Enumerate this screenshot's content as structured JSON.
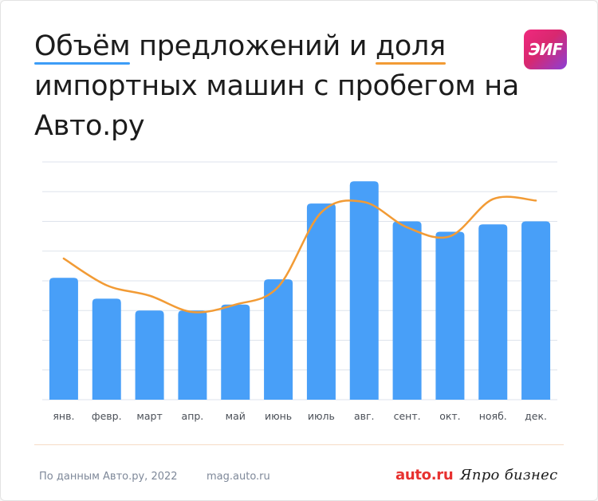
{
  "title": {
    "part1": "Объём",
    "part2": " предложений и ",
    "part3": "доля",
    "part4": " импортных машин с пробегом на Авто.ру"
  },
  "logo_text": "ЭИF",
  "colors": {
    "bar": "#489ff8",
    "line": "#f29b35",
    "grid": "#dde3ec",
    "text": "#1c1c1c",
    "muted": "#7e8899",
    "brand_red": "#e7312f"
  },
  "chart_data": {
    "type": "bar",
    "title": "",
    "xlabel": "",
    "ylabel": "",
    "ylim": [
      0,
      8
    ],
    "categories": [
      "янв.",
      "февр.",
      "март",
      "апр.",
      "май",
      "июнь",
      "июль",
      "авг.",
      "сент.",
      "окт.",
      "нояб.",
      "дек."
    ],
    "series": [
      {
        "kind": "bar",
        "values": [
          4.1,
          3.4,
          3.0,
          3.0,
          3.2,
          4.05,
          6.6,
          7.35,
          6.0,
          5.65,
          5.9,
          6.0
        ]
      },
      {
        "kind": "line",
        "smooth": true,
        "values": [
          4.75,
          3.85,
          3.5,
          2.95,
          3.2,
          3.8,
          6.3,
          6.65,
          5.8,
          5.5,
          6.75,
          6.7
        ]
      }
    ],
    "grid": true,
    "y_tick_labels_shown": false
  },
  "footer": {
    "source": "По данным Авто.ру, 2022",
    "site": "mag.auto.ru",
    "brand1": "auto.ru",
    "brand2": "Япро бизнес"
  }
}
